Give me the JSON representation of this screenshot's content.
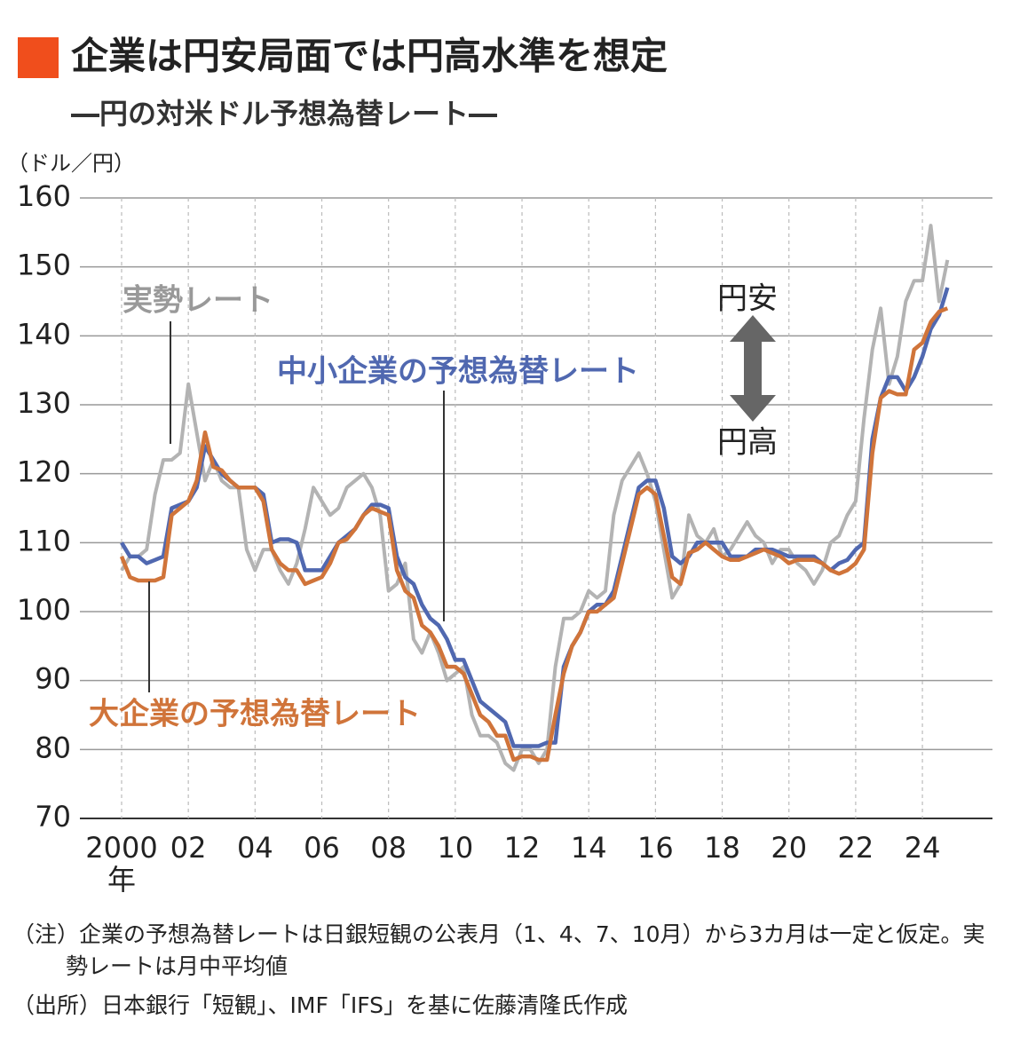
{
  "chart_data": {
    "type": "line",
    "title": "企業は円安局面では円高水準を想定",
    "subtitle": "―円の対米ドル予想為替レート―",
    "y_unit": "（ドル／円）",
    "x_unit": "年",
    "xlim": [
      1998.75,
      2026.1
    ],
    "ylim": [
      70,
      160
    ],
    "yticks": [
      70,
      80,
      90,
      100,
      110,
      120,
      130,
      140,
      150,
      160
    ],
    "xticks": [
      {
        "value": 2000,
        "label": "2000"
      },
      {
        "value": 2002,
        "label": "02"
      },
      {
        "value": 2004,
        "label": "04"
      },
      {
        "value": 2006,
        "label": "06"
      },
      {
        "value": 2008,
        "label": "08"
      },
      {
        "value": 2010,
        "label": "10"
      },
      {
        "value": 2012,
        "label": "12"
      },
      {
        "value": 2014,
        "label": "14"
      },
      {
        "value": 2016,
        "label": "16"
      },
      {
        "value": 2018,
        "label": "18"
      },
      {
        "value": 2020,
        "label": "20"
      },
      {
        "value": 2022,
        "label": "22"
      },
      {
        "value": 2024,
        "label": "24"
      }
    ],
    "grid": true,
    "x": [
      2000,
      2000.25,
      2000.5,
      2000.75,
      2001,
      2001.25,
      2001.5,
      2001.75,
      2002,
      2002.25,
      2002.5,
      2002.75,
      2003,
      2003.25,
      2003.5,
      2003.75,
      2004,
      2004.25,
      2004.5,
      2004.75,
      2005,
      2005.25,
      2005.5,
      2005.75,
      2006,
      2006.25,
      2006.5,
      2006.75,
      2007,
      2007.25,
      2007.5,
      2007.75,
      2008,
      2008.25,
      2008.5,
      2008.75,
      2009,
      2009.25,
      2009.5,
      2009.75,
      2010,
      2010.25,
      2010.5,
      2010.75,
      2011,
      2011.25,
      2011.5,
      2011.75,
      2012,
      2012.25,
      2012.5,
      2012.75,
      2013,
      2013.25,
      2013.5,
      2013.75,
      2014,
      2014.25,
      2014.5,
      2014.75,
      2015,
      2015.25,
      2015.5,
      2015.75,
      2016,
      2016.25,
      2016.5,
      2016.75,
      2017,
      2017.25,
      2017.5,
      2017.75,
      2018,
      2018.25,
      2018.5,
      2018.75,
      2019,
      2019.25,
      2019.5,
      2019.75,
      2020,
      2020.25,
      2020.5,
      2020.75,
      2021,
      2021.25,
      2021.5,
      2021.75,
      2022,
      2022.25,
      2022.5,
      2022.75,
      2023,
      2023.25,
      2023.5,
      2023.75,
      2024,
      2024.25,
      2024.5,
      2024.75
    ],
    "series": [
      {
        "name": "実勢レート",
        "color": "#b3b3b3",
        "values": [
          106,
          108,
          108,
          109,
          117,
          122,
          122,
          123,
          133,
          126,
          119,
          122,
          119,
          118,
          118,
          109,
          106,
          109,
          109,
          106,
          104,
          107,
          112,
          118,
          116,
          114,
          115,
          118,
          119,
          120,
          118,
          114,
          103,
          104,
          107,
          96,
          94,
          97,
          94,
          90,
          91,
          92,
          85,
          82,
          82,
          81,
          78,
          77,
          80,
          80,
          78,
          80,
          92,
          99,
          99,
          100,
          103,
          102,
          103,
          114,
          119,
          121,
          123,
          120,
          116,
          109,
          102,
          104,
          114,
          111,
          110,
          112,
          108,
          109,
          111,
          113,
          111,
          110,
          107,
          109,
          109,
          107,
          106,
          104,
          106,
          110,
          111,
          114,
          116,
          128,
          138,
          144,
          133,
          137,
          145,
          148,
          148,
          156,
          145,
          151
        ]
      },
      {
        "name": "中小企業の予想為替レート",
        "color": "#5068b0",
        "values": [
          110,
          108,
          108,
          107,
          107.5,
          108,
          115,
          115.5,
          116,
          118,
          124,
          122,
          120,
          119,
          118,
          118,
          118,
          117,
          110,
          110.5,
          110.5,
          110,
          106,
          106,
          106,
          108,
          110,
          111,
          112,
          114,
          115.5,
          115.5,
          115,
          108,
          105,
          104,
          101,
          99,
          98,
          96,
          93,
          93,
          90,
          87,
          86,
          85,
          84,
          80.5,
          80.5,
          80.5,
          80.5,
          81,
          81,
          92,
          95,
          97,
          100,
          101,
          101,
          103,
          108,
          113,
          118,
          119,
          119,
          115,
          108,
          107,
          108,
          110,
          110,
          110,
          110,
          108,
          108,
          108,
          109,
          109,
          109,
          108.5,
          108,
          108,
          108,
          108,
          107,
          106,
          107,
          107.5,
          109,
          110,
          125,
          131,
          134,
          134,
          132,
          134,
          137,
          141,
          143,
          147
        ]
      },
      {
        "name": "大企業の予想為替レート",
        "color": "#d0743a",
        "values": [
          108,
          105,
          104.5,
          104.5,
          104.5,
          105,
          114,
          115,
          116,
          119,
          126,
          121,
          120.5,
          119,
          118,
          118,
          118,
          116,
          109,
          107,
          106,
          106,
          104,
          104.5,
          105,
          107,
          110,
          110.5,
          112,
          114,
          115,
          114.5,
          114,
          106,
          103,
          102,
          98,
          97,
          95,
          92,
          92,
          91,
          88,
          85,
          84,
          82,
          82,
          78.5,
          79,
          79,
          78.5,
          78.5,
          85,
          91,
          95,
          97,
          100,
          100,
          101,
          102,
          107,
          112,
          117,
          118,
          117,
          111,
          105,
          104,
          108.5,
          109,
          110,
          109,
          108,
          107.5,
          107.5,
          108,
          108.5,
          109,
          108.5,
          108,
          107,
          107.5,
          107.5,
          107.5,
          107,
          106,
          105.5,
          106,
          107,
          109,
          123,
          131,
          132,
          131.5,
          131.5,
          138,
          139,
          142,
          143.5,
          144
        ]
      }
    ],
    "annotations": {
      "weak": "円安",
      "strong": "円高"
    },
    "notes": [
      "（注）企業の予想為替レートは日銀短観の公表月（1、4、7、10月）から3カ月は一定と仮定。実勢レートは月中平均値",
      "（出所）日本銀行「短観」、IMF「IFS」を基に佐藤清隆氏作成"
    ]
  }
}
